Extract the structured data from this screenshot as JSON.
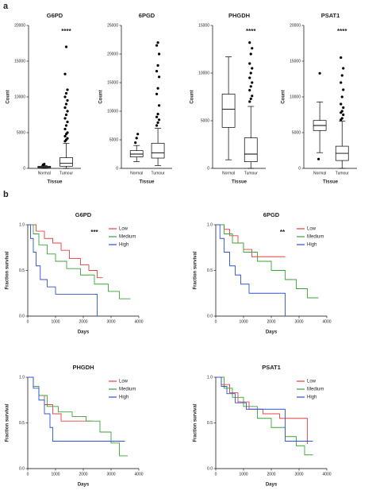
{
  "panel_labels": [
    "a",
    "b"
  ],
  "chart_data": [
    {
      "type": "box",
      "title": "G6PD",
      "y_label": "Count",
      "x_label": "Tissue",
      "annotation": "****",
      "categories": [
        "Normal",
        "Tumour"
      ],
      "ylim": [
        0,
        20000
      ],
      "yticks": [
        0,
        5000,
        10000,
        15000,
        20000
      ],
      "boxes": [
        {
          "min": 0,
          "q1": 100,
          "median": 200,
          "q3": 300,
          "max": 400,
          "outliers": [
            500,
            600
          ]
        },
        {
          "min": 0,
          "q1": 300,
          "median": 700,
          "q3": 1500,
          "max": 3500,
          "outliers": [
            3800,
            4000,
            4200,
            4500,
            4800,
            5000,
            5500,
            6000,
            6500,
            7000,
            7500,
            8000,
            8500,
            9000,
            9500,
            10000,
            10500,
            11000,
            13200,
            17000
          ]
        }
      ]
    },
    {
      "type": "box",
      "title": "6PGD",
      "y_label": "Count",
      "x_label": "Tissue",
      "categories": [
        "Normal",
        "Tumour"
      ],
      "ylim": [
        0,
        25000
      ],
      "yticks": [
        0,
        5000,
        10000,
        15000,
        20000,
        25000
      ],
      "boxes": [
        {
          "min": 1200,
          "q1": 2000,
          "median": 2500,
          "q3": 3100,
          "max": 4000,
          "outliers": [
            4500,
            5300,
            6000
          ]
        },
        {
          "min": 500,
          "q1": 1800,
          "median": 2700,
          "q3": 4400,
          "max": 7000,
          "outliers": [
            7500,
            8000,
            8500,
            9000,
            9500,
            11000,
            13000,
            14000,
            16000,
            17000,
            18000,
            20000,
            21500,
            22000
          ]
        }
      ]
    },
    {
      "type": "box",
      "title": "PHGDH",
      "y_label": "Count",
      "x_label": "Tissue",
      "annotation": "****",
      "categories": [
        "Normal",
        "Tumour"
      ],
      "ylim": [
        0,
        15000
      ],
      "yticks": [
        0,
        5000,
        10000,
        15000
      ],
      "boxes": [
        {
          "min": 900,
          "q1": 4300,
          "median": 6200,
          "q3": 7800,
          "max": 11700,
          "outliers": []
        },
        {
          "min": 0,
          "q1": 700,
          "median": 1500,
          "q3": 3200,
          "max": 6500,
          "outliers": [
            7000,
            7300,
            7600,
            8200,
            8600,
            9000,
            9500,
            10000,
            10500,
            11000,
            12000,
            12600,
            13200
          ]
        }
      ]
    },
    {
      "type": "box",
      "title": "PSAT1",
      "y_label": "Count",
      "x_label": "Tissue",
      "annotation": "****",
      "categories": [
        "Normal",
        "Tumour"
      ],
      "ylim": [
        0,
        20000
      ],
      "yticks": [
        0,
        5000,
        10000,
        15000,
        20000
      ],
      "boxes": [
        {
          "min": 2200,
          "q1": 5300,
          "median": 6000,
          "q3": 6700,
          "max": 9300,
          "outliers": [
            1300,
            13300
          ]
        },
        {
          "min": 0,
          "q1": 1100,
          "median": 2100,
          "q3": 3100,
          "max": 6600,
          "outliers": [
            6800,
            7000,
            7500,
            7800,
            8000,
            8500,
            9000,
            10000,
            11000,
            12000,
            13000,
            14000,
            15500
          ]
        }
      ]
    },
    {
      "type": "line",
      "title": "G6PD",
      "x_label": "Days",
      "y_label": "Fraction survival",
      "annotation": "***",
      "xlim": [
        0,
        4000
      ],
      "xticks": [
        0,
        1000,
        2000,
        3000,
        4000
      ],
      "ylim": [
        0,
        1
      ],
      "yticks": [
        {
          "value": 0,
          "label": "0.0"
        },
        0.5,
        {
          "value": 1,
          "label": "1.0"
        }
      ],
      "legend": "top-right",
      "series": [
        {
          "name": "Low",
          "color": "#e8403f",
          "x": [
            0,
            300,
            300,
            600,
            600,
            900,
            900,
            1200,
            1200,
            1500,
            1500,
            1900,
            1900,
            2200,
            2200,
            2500,
            2500,
            2700
          ],
          "values": [
            1,
            1,
            0.93,
            0.93,
            0.85,
            0.85,
            0.8,
            0.8,
            0.72,
            0.72,
            0.63,
            0.63,
            0.56,
            0.56,
            0.5,
            0.5,
            0.42,
            0.42
          ]
        },
        {
          "name": "Medium",
          "color": "#3aa336",
          "x": [
            0,
            200,
            200,
            400,
            400,
            700,
            700,
            1000,
            1000,
            1400,
            1400,
            1900,
            1900,
            2400,
            2400,
            2900,
            2900,
            3300,
            3300,
            3700
          ],
          "values": [
            1,
            1,
            0.9,
            0.9,
            0.78,
            0.78,
            0.68,
            0.68,
            0.6,
            0.6,
            0.52,
            0.52,
            0.45,
            0.45,
            0.35,
            0.35,
            0.27,
            0.27,
            0.19,
            0.19
          ]
        },
        {
          "name": "High",
          "color": "#3050d8",
          "x": [
            0,
            100,
            100,
            200,
            200,
            300,
            300,
            450,
            450,
            700,
            700,
            1000,
            1000,
            2500,
            2500
          ],
          "values": [
            1,
            1,
            0.85,
            0.85,
            0.7,
            0.7,
            0.55,
            0.55,
            0.4,
            0.4,
            0.32,
            0.32,
            0.24,
            0.24,
            0
          ]
        }
      ]
    },
    {
      "type": "line",
      "title": "6PGD",
      "x_label": "Days",
      "y_label": "Fraction survival",
      "annotation": "**",
      "xlim": [
        0,
        4000
      ],
      "xticks": [
        0,
        1000,
        2000,
        3000,
        4000
      ],
      "ylim": [
        0,
        1
      ],
      "yticks": [
        {
          "value": 0,
          "label": "0.0"
        },
        0.5,
        {
          "value": 1,
          "label": "1.0"
        }
      ],
      "legend": "top-right",
      "series": [
        {
          "name": "Low",
          "color": "#e8403f",
          "x": [
            0,
            300,
            300,
            500,
            500,
            800,
            800,
            1000,
            1000,
            1300,
            1300,
            2500
          ],
          "values": [
            1,
            1,
            0.95,
            0.95,
            0.88,
            0.88,
            0.8,
            0.8,
            0.73,
            0.73,
            0.65,
            0.65
          ]
        },
        {
          "name": "Medium",
          "color": "#3aa336",
          "x": [
            0,
            300,
            300,
            600,
            600,
            1000,
            1000,
            1500,
            1500,
            2000,
            2000,
            2500,
            2500,
            2900,
            2900,
            3300,
            3300,
            3700
          ],
          "values": [
            1,
            1,
            0.9,
            0.9,
            0.8,
            0.8,
            0.7,
            0.7,
            0.6,
            0.6,
            0.5,
            0.5,
            0.4,
            0.4,
            0.3,
            0.3,
            0.2,
            0.2
          ]
        },
        {
          "name": "High",
          "color": "#3050d8",
          "x": [
            0,
            150,
            150,
            300,
            300,
            500,
            500,
            700,
            700,
            900,
            900,
            1200,
            1200,
            2500,
            2500
          ],
          "values": [
            1,
            1,
            0.85,
            0.85,
            0.7,
            0.7,
            0.55,
            0.55,
            0.45,
            0.45,
            0.35,
            0.35,
            0.25,
            0.25,
            0
          ]
        }
      ]
    },
    {
      "type": "line",
      "title": "PHGDH",
      "x_label": "Days",
      "y_label": "Fraction survival",
      "xlim": [
        0,
        4000
      ],
      "xticks": [
        0,
        1000,
        2000,
        3000,
        4000
      ],
      "ylim": [
        0,
        1
      ],
      "yticks": [
        {
          "value": 0,
          "label": "0.0"
        },
        0.5,
        {
          "value": 1,
          "label": "1.0"
        }
      ],
      "legend": "top-right",
      "series": [
        {
          "name": "Low",
          "color": "#e8403f",
          "x": [
            0,
            200,
            200,
            400,
            400,
            600,
            600,
            900,
            900,
            1200,
            1200,
            2300
          ],
          "values": [
            1,
            1,
            0.9,
            0.9,
            0.8,
            0.8,
            0.7,
            0.7,
            0.6,
            0.6,
            0.52,
            0.52
          ]
        },
        {
          "name": "Medium",
          "color": "#3aa336",
          "x": [
            0,
            200,
            200,
            400,
            400,
            700,
            700,
            1100,
            1100,
            1600,
            1600,
            2100,
            2100,
            2600,
            2600,
            3000,
            3000,
            3300,
            3300,
            3600
          ],
          "values": [
            1,
            1,
            0.9,
            0.9,
            0.8,
            0.8,
            0.68,
            0.68,
            0.62,
            0.62,
            0.57,
            0.57,
            0.52,
            0.52,
            0.4,
            0.4,
            0.28,
            0.28,
            0.14,
            0.14
          ]
        },
        {
          "name": "High",
          "color": "#3050d8",
          "x": [
            0,
            200,
            200,
            400,
            400,
            600,
            600,
            800,
            800,
            900,
            900,
            3500
          ],
          "values": [
            1,
            1,
            0.88,
            0.88,
            0.75,
            0.75,
            0.6,
            0.6,
            0.45,
            0.45,
            0.3,
            0.3
          ]
        }
      ]
    },
    {
      "type": "line",
      "title": "PSAT1",
      "x_label": "Days",
      "y_label": "Fraction survival",
      "xlim": [
        0,
        4000
      ],
      "xticks": [
        0,
        1000,
        2000,
        3000,
        4000
      ],
      "ylim": [
        0,
        1
      ],
      "yticks": [
        {
          "value": 0,
          "label": "0.0"
        },
        0.5,
        {
          "value": 1,
          "label": "1.0"
        }
      ],
      "legend": "top-right",
      "series": [
        {
          "name": "Low",
          "color": "#e8403f",
          "x": [
            0,
            200,
            200,
            500,
            500,
            800,
            800,
            1200,
            1200,
            1700,
            1700,
            2300,
            2300,
            3300,
            3300
          ],
          "values": [
            1,
            1,
            0.92,
            0.92,
            0.83,
            0.83,
            0.73,
            0.73,
            0.65,
            0.65,
            0.6,
            0.6,
            0.55,
            0.55,
            0.27
          ]
        },
        {
          "name": "Medium",
          "color": "#3aa336",
          "x": [
            0,
            300,
            300,
            600,
            600,
            1000,
            1000,
            1500,
            1500,
            2000,
            2000,
            2500,
            2500,
            2900,
            2900,
            3200,
            3200,
            3500
          ],
          "values": [
            1,
            1,
            0.88,
            0.88,
            0.78,
            0.78,
            0.68,
            0.68,
            0.55,
            0.55,
            0.45,
            0.45,
            0.35,
            0.35,
            0.25,
            0.25,
            0.15,
            0.15
          ]
        },
        {
          "name": "High",
          "color": "#3050d8",
          "x": [
            0,
            200,
            200,
            400,
            400,
            700,
            700,
            1100,
            1100,
            2500,
            2500,
            3500
          ],
          "values": [
            1,
            1,
            0.9,
            0.9,
            0.82,
            0.82,
            0.72,
            0.72,
            0.65,
            0.65,
            0.3,
            0.3
          ]
        }
      ]
    }
  ]
}
